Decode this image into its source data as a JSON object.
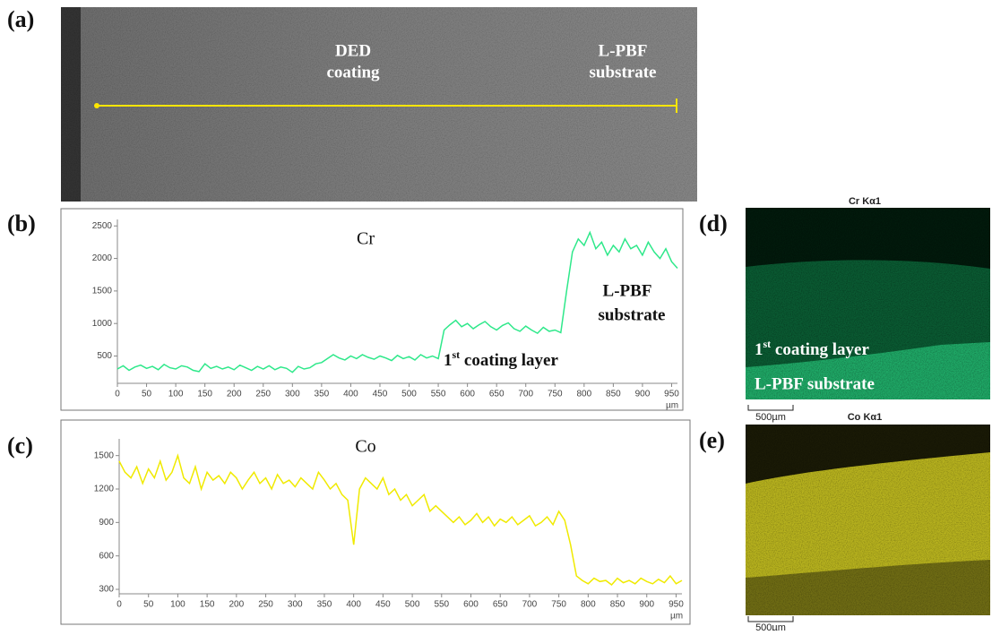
{
  "figure": {
    "panel_labels": [
      "(a)",
      "(b)",
      "(c)",
      "(d)",
      "(e)"
    ],
    "panel_a": {
      "labels": [
        "DED",
        "coating",
        "L-PBF",
        "substrate"
      ]
    },
    "panel_d": {
      "title": "Cr Kα1",
      "layer_label": {
        "base": "1",
        "sup": "st",
        "text": " coating layer"
      },
      "substrate_label": "L-PBF substrate",
      "scale_bar": "500µm"
    },
    "panel_e": {
      "title": "Co Kα1",
      "scale_bar": "500µm"
    }
  },
  "chart_data": [
    {
      "type": "line",
      "title": "Cr",
      "x_unit": "µm",
      "annotations": [
        {
          "text": "L-PBF"
        },
        {
          "text": "substrate"
        },
        {
          "base": "1",
          "sup": "st",
          "text": " coating layer"
        }
      ],
      "xlim": [
        0,
        960
      ],
      "xticks": [
        0,
        50,
        100,
        150,
        200,
        250,
        300,
        350,
        400,
        450,
        500,
        550,
        600,
        650,
        700,
        750,
        800,
        850,
        900,
        950
      ],
      "ylim": [
        80,
        2600
      ],
      "yticks": [
        500,
        1000,
        1500,
        2000,
        2500
      ],
      "x": [
        0,
        10,
        20,
        30,
        40,
        50,
        60,
        70,
        80,
        90,
        100,
        110,
        120,
        130,
        140,
        150,
        160,
        170,
        180,
        190,
        200,
        210,
        220,
        230,
        240,
        250,
        260,
        270,
        280,
        290,
        300,
        310,
        320,
        330,
        340,
        350,
        360,
        370,
        380,
        390,
        400,
        410,
        420,
        430,
        440,
        450,
        460,
        470,
        480,
        490,
        500,
        510,
        520,
        530,
        540,
        550,
        560,
        570,
        580,
        590,
        600,
        610,
        620,
        630,
        640,
        650,
        660,
        670,
        680,
        690,
        700,
        710,
        720,
        730,
        740,
        750,
        760,
        770,
        780,
        790,
        800,
        810,
        820,
        830,
        840,
        850,
        860,
        870,
        880,
        890,
        900,
        910,
        920,
        930,
        940,
        950,
        960
      ],
      "series": [
        {
          "color": "#2ee88a",
          "values": [
            300,
            350,
            280,
            330,
            360,
            310,
            340,
            290,
            370,
            320,
            300,
            350,
            330,
            280,
            260,
            380,
            310,
            340,
            300,
            330,
            290,
            360,
            320,
            280,
            340,
            300,
            350,
            290,
            330,
            310,
            250,
            340,
            300,
            320,
            380,
            400,
            460,
            520,
            470,
            440,
            500,
            460,
            520,
            480,
            450,
            500,
            470,
            430,
            510,
            460,
            490,
            440,
            520,
            470,
            500,
            460,
            900,
            980,
            1050,
            950,
            1000,
            920,
            980,
            1030,
            950,
            900,
            970,
            1010,
            920,
            880,
            960,
            900,
            850,
            940,
            880,
            900,
            860,
            1500,
            2100,
            2300,
            2200,
            2400,
            2150,
            2250,
            2050,
            2200,
            2100,
            2300,
            2150,
            2200,
            2050,
            2250,
            2100,
            2000,
            2150,
            1950,
            1850
          ]
        }
      ]
    },
    {
      "type": "line",
      "title": "Co",
      "x_unit": "µm",
      "annotations": [],
      "xlim": [
        0,
        960
      ],
      "xticks": [
        0,
        50,
        100,
        150,
        200,
        250,
        300,
        350,
        400,
        450,
        500,
        550,
        600,
        650,
        700,
        750,
        800,
        850,
        900,
        950
      ],
      "ylim": [
        260,
        1650
      ],
      "yticks": [
        300,
        600,
        900,
        1200,
        1500
      ],
      "x": [
        0,
        10,
        20,
        30,
        40,
        50,
        60,
        70,
        80,
        90,
        100,
        110,
        120,
        130,
        140,
        150,
        160,
        170,
        180,
        190,
        200,
        210,
        220,
        230,
        240,
        250,
        260,
        270,
        280,
        290,
        300,
        310,
        320,
        330,
        340,
        350,
        360,
        370,
        380,
        390,
        400,
        410,
        420,
        430,
        440,
        450,
        460,
        470,
        480,
        490,
        500,
        510,
        520,
        530,
        540,
        550,
        560,
        570,
        580,
        590,
        600,
        610,
        620,
        630,
        640,
        650,
        660,
        670,
        680,
        690,
        700,
        710,
        720,
        730,
        740,
        750,
        760,
        770,
        780,
        790,
        800,
        810,
        820,
        830,
        840,
        850,
        860,
        870,
        880,
        890,
        900,
        910,
        920,
        930,
        940,
        950,
        960
      ],
      "series": [
        {
          "color": "#f0ea00",
          "values": [
            1450,
            1350,
            1300,
            1400,
            1250,
            1380,
            1300,
            1450,
            1280,
            1350,
            1500,
            1300,
            1250,
            1400,
            1200,
            1350,
            1280,
            1320,
            1250,
            1350,
            1300,
            1200,
            1280,
            1350,
            1250,
            1300,
            1200,
            1330,
            1250,
            1280,
            1220,
            1300,
            1250,
            1200,
            1350,
            1280,
            1200,
            1250,
            1150,
            1100,
            700,
            1200,
            1300,
            1250,
            1200,
            1300,
            1150,
            1200,
            1100,
            1150,
            1050,
            1100,
            1150,
            1000,
            1050,
            1000,
            950,
            900,
            950,
            880,
            920,
            980,
            900,
            950,
            870,
            930,
            900,
            950,
            880,
            920,
            960,
            870,
            900,
            950,
            880,
            1000,
            920,
            700,
            420,
            380,
            350,
            400,
            370,
            380,
            340,
            400,
            360,
            380,
            350,
            400,
            370,
            350,
            390,
            360,
            420,
            350,
            380
          ]
        }
      ]
    }
  ]
}
